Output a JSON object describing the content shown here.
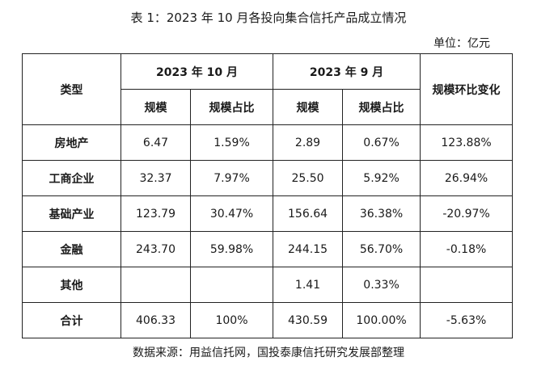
{
  "title": "表 1：2023 年 10 月各投向集合信托产品成立情况",
  "unit": "单位：亿元",
  "headers": {
    "category": "类型",
    "period_oct": "2023 年 10 月",
    "period_sep": "2023 年 9 月",
    "scale": "规模",
    "share": "规模占比",
    "mom_change": "规模环比变化"
  },
  "rows": [
    {
      "category": "房地产",
      "oct_scale": "6.47",
      "oct_share": "1.59%",
      "sep_scale": "2.89",
      "sep_share": "0.67%",
      "mom": "123.88%"
    },
    {
      "category": "工商企业",
      "oct_scale": "32.37",
      "oct_share": "7.97%",
      "sep_scale": "25.50",
      "sep_share": "5.92%",
      "mom": "26.94%"
    },
    {
      "category": "基础产业",
      "oct_scale": "123.79",
      "oct_share": "30.47%",
      "sep_scale": "156.64",
      "sep_share": "36.38%",
      "mom": "-20.97%"
    },
    {
      "category": "金融",
      "oct_scale": "243.70",
      "oct_share": "59.98%",
      "sep_scale": "244.15",
      "sep_share": "56.70%",
      "mom": "-0.18%"
    },
    {
      "category": "其他",
      "oct_scale": "",
      "oct_share": "",
      "sep_scale": "1.41",
      "sep_share": "0.33%",
      "mom": ""
    },
    {
      "category": "合计",
      "oct_scale": "406.33",
      "oct_share": "100%",
      "sep_scale": "430.59",
      "sep_share": "100.00%",
      "mom": "-5.63%"
    }
  ],
  "source": "数据来源：用益信托网，国投泰康信托研究发展部整理"
}
